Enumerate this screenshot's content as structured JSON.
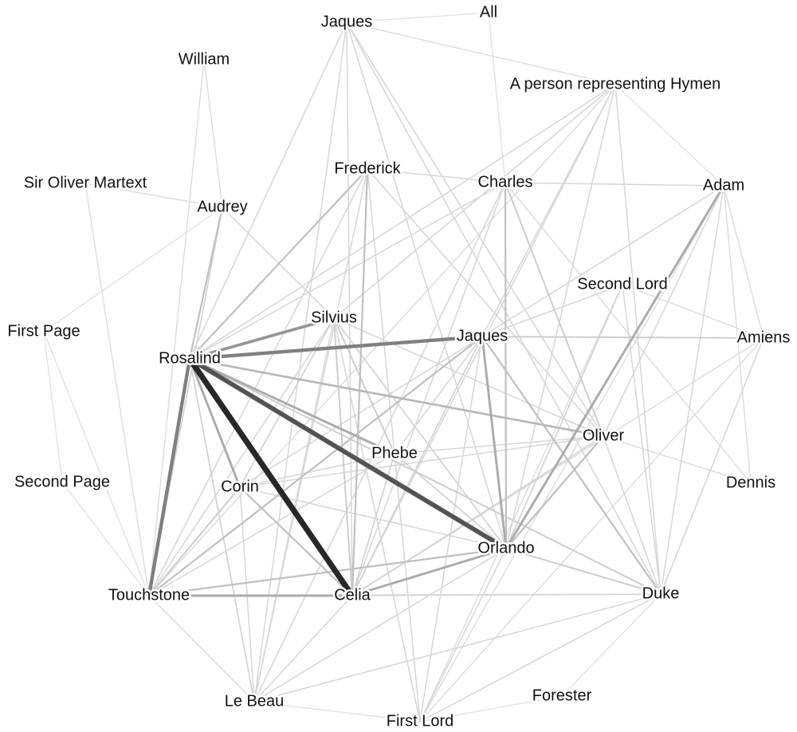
{
  "nodes": [
    {
      "id": "jaques_top",
      "label": "Jaques"
    },
    {
      "id": "all",
      "label": "All"
    },
    {
      "id": "william",
      "label": "William"
    },
    {
      "id": "hymen",
      "label": "A person representing Hymen"
    },
    {
      "id": "frederick",
      "label": "Frederick"
    },
    {
      "id": "charles",
      "label": "Charles"
    },
    {
      "id": "adam",
      "label": "Adam"
    },
    {
      "id": "sir_oliver",
      "label": "Sir Oliver Martext"
    },
    {
      "id": "audrey",
      "label": "Audrey"
    },
    {
      "id": "second_lord",
      "label": "Second Lord"
    },
    {
      "id": "silvius",
      "label": "Silvius"
    },
    {
      "id": "first_page",
      "label": "First Page"
    },
    {
      "id": "jaques",
      "label": "Jaques"
    },
    {
      "id": "amiens",
      "label": "Amiens"
    },
    {
      "id": "rosalind",
      "label": "Rosalind"
    },
    {
      "id": "oliver",
      "label": "Oliver"
    },
    {
      "id": "phebe",
      "label": "Phebe"
    },
    {
      "id": "second_page",
      "label": "Second Page"
    },
    {
      "id": "dennis",
      "label": "Dennis"
    },
    {
      "id": "corin",
      "label": "Corin"
    },
    {
      "id": "orlando",
      "label": "Orlando"
    },
    {
      "id": "touchstone",
      "label": "Touchstone"
    },
    {
      "id": "celia",
      "label": "Celia"
    },
    {
      "id": "duke",
      "label": "Duke"
    },
    {
      "id": "forester",
      "label": "Forester"
    },
    {
      "id": "le_beau",
      "label": "Le Beau"
    },
    {
      "id": "first_lord",
      "label": "First Lord"
    }
  ],
  "edges": [
    {
      "source": "rosalind",
      "target": "celia",
      "weight": 9
    },
    {
      "source": "rosalind",
      "target": "orlando",
      "weight": 7
    },
    {
      "source": "rosalind",
      "target": "touchstone",
      "weight": 5
    },
    {
      "source": "rosalind",
      "target": "jaques",
      "weight": 5
    },
    {
      "source": "rosalind",
      "target": "silvius",
      "weight": 4
    },
    {
      "source": "rosalind",
      "target": "phebe",
      "weight": 3
    },
    {
      "source": "rosalind",
      "target": "corin",
      "weight": 3
    },
    {
      "source": "rosalind",
      "target": "oliver",
      "weight": 2.5
    },
    {
      "source": "rosalind",
      "target": "frederick",
      "weight": 2
    },
    {
      "source": "rosalind",
      "target": "audrey",
      "weight": 2
    },
    {
      "source": "rosalind",
      "target": "jaques_top",
      "weight": 1
    },
    {
      "source": "rosalind",
      "target": "charles",
      "weight": 1
    },
    {
      "source": "rosalind",
      "target": "le_beau",
      "weight": 1.2
    },
    {
      "source": "rosalind",
      "target": "duke",
      "weight": 1.5
    },
    {
      "source": "rosalind",
      "target": "hymen",
      "weight": 1
    },
    {
      "source": "orlando",
      "target": "jaques",
      "weight": 3
    },
    {
      "source": "orlando",
      "target": "adam",
      "weight": 3
    },
    {
      "source": "orlando",
      "target": "celia",
      "weight": 3
    },
    {
      "source": "orlando",
      "target": "oliver",
      "weight": 2
    },
    {
      "source": "orlando",
      "target": "charles",
      "weight": 2
    },
    {
      "source": "orlando",
      "target": "touchstone",
      "weight": 2
    },
    {
      "source": "orlando",
      "target": "duke",
      "weight": 1.5
    },
    {
      "source": "orlando",
      "target": "second_lord",
      "weight": 1.2
    },
    {
      "source": "orlando",
      "target": "jaques_top",
      "weight": 1
    },
    {
      "source": "orlando",
      "target": "phebe",
      "weight": 1.2
    },
    {
      "source": "orlando",
      "target": "silvius",
      "weight": 1.2
    },
    {
      "source": "orlando",
      "target": "corin",
      "weight": 1
    },
    {
      "source": "orlando",
      "target": "first_lord",
      "weight": 1
    },
    {
      "source": "orlando",
      "target": "le_beau",
      "weight": 1
    },
    {
      "source": "orlando",
      "target": "hymen",
      "weight": 1
    },
    {
      "source": "celia",
      "target": "touchstone",
      "weight": 3
    },
    {
      "source": "celia",
      "target": "frederick",
      "weight": 2
    },
    {
      "source": "celia",
      "target": "corin",
      "weight": 2
    },
    {
      "source": "celia",
      "target": "silvius",
      "weight": 1.5
    },
    {
      "source": "celia",
      "target": "phebe",
      "weight": 1.2
    },
    {
      "source": "celia",
      "target": "jaques",
      "weight": 1.2
    },
    {
      "source": "celia",
      "target": "oliver",
      "weight": 1.2
    },
    {
      "source": "celia",
      "target": "charles",
      "weight": 1
    },
    {
      "source": "celia",
      "target": "le_beau",
      "weight": 1
    },
    {
      "source": "celia",
      "target": "duke",
      "weight": 1
    },
    {
      "source": "touchstone",
      "target": "jaques",
      "weight": 2
    },
    {
      "source": "touchstone",
      "target": "corin",
      "weight": 1.5
    },
    {
      "source": "touchstone",
      "target": "audrey",
      "weight": 1.2
    },
    {
      "source": "touchstone",
      "target": "silvius",
      "weight": 1
    },
    {
      "source": "touchstone",
      "target": "william",
      "weight": 0.8
    },
    {
      "source": "touchstone",
      "target": "sir_oliver",
      "weight": 0.8
    },
    {
      "source": "touchstone",
      "target": "first_page",
      "weight": 0.6
    },
    {
      "source": "touchstone",
      "target": "second_page",
      "weight": 0.6
    },
    {
      "source": "touchstone",
      "target": "le_beau",
      "weight": 0.8
    },
    {
      "source": "touchstone",
      "target": "frederick",
      "weight": 1
    },
    {
      "source": "touchstone",
      "target": "phebe",
      "weight": 1
    },
    {
      "source": "touchstone",
      "target": "duke",
      "weight": 1
    },
    {
      "source": "touchstone",
      "target": "hymen",
      "weight": 0.8
    },
    {
      "source": "jaques",
      "target": "duke",
      "weight": 2
    },
    {
      "source": "jaques",
      "target": "amiens",
      "weight": 1.5
    },
    {
      "source": "jaques",
      "target": "second_lord",
      "weight": 1
    },
    {
      "source": "jaques",
      "target": "adam",
      "weight": 1
    },
    {
      "source": "jaques",
      "target": "first_lord",
      "weight": 1
    },
    {
      "source": "jaques",
      "target": "phebe",
      "weight": 1
    },
    {
      "source": "jaques",
      "target": "corin",
      "weight": 1
    },
    {
      "source": "jaques",
      "target": "hymen",
      "weight": 1
    },
    {
      "source": "frederick",
      "target": "charles",
      "weight": 1
    },
    {
      "source": "frederick",
      "target": "oliver",
      "weight": 1
    },
    {
      "source": "frederick",
      "target": "le_beau",
      "weight": 1
    },
    {
      "source": "frederick",
      "target": "first_lord",
      "weight": 1
    },
    {
      "source": "charles",
      "target": "oliver",
      "weight": 1.5
    },
    {
      "source": "charles",
      "target": "adam",
      "weight": 1
    },
    {
      "source": "charles",
      "target": "dennis",
      "weight": 0.8
    },
    {
      "source": "charles",
      "target": "le_beau",
      "weight": 1
    },
    {
      "source": "charles",
      "target": "all",
      "weight": 0.6
    },
    {
      "source": "adam",
      "target": "duke",
      "weight": 1
    },
    {
      "source": "adam",
      "target": "oliver",
      "weight": 1
    },
    {
      "source": "adam",
      "target": "dennis",
      "weight": 0.8
    },
    {
      "source": "adam",
      "target": "first_lord",
      "weight": 0.8
    },
    {
      "source": "duke",
      "target": "amiens",
      "weight": 1
    },
    {
      "source": "duke",
      "target": "first_lord",
      "weight": 1
    },
    {
      "source": "duke",
      "target": "second_lord",
      "weight": 1
    },
    {
      "source": "duke",
      "target": "le_beau",
      "weight": 1
    },
    {
      "source": "duke",
      "target": "hymen",
      "weight": 1
    },
    {
      "source": "duke",
      "target": "oliver",
      "weight": 1
    },
    {
      "source": "duke",
      "target": "jaques_top",
      "weight": 1
    },
    {
      "source": "duke",
      "target": "celia",
      "weight": 1
    },
    {
      "source": "oliver",
      "target": "dennis",
      "weight": 0.8
    },
    {
      "source": "oliver",
      "target": "phebe",
      "weight": 1
    },
    {
      "source": "oliver",
      "target": "silvius",
      "weight": 1
    },
    {
      "source": "oliver",
      "target": "corin",
      "weight": 1
    },
    {
      "source": "silvius",
      "target": "phebe",
      "weight": 1.5
    },
    {
      "source": "silvius",
      "target": "corin",
      "weight": 1.2
    },
    {
      "source": "silvius",
      "target": "le_beau",
      "weight": 1
    },
    {
      "source": "silvius",
      "target": "first_lord",
      "weight": 1
    },
    {
      "source": "silvius",
      "target": "hymen",
      "weight": 1
    },
    {
      "source": "silvius",
      "target": "audrey",
      "weight": 1
    },
    {
      "source": "phebe",
      "target": "corin",
      "weight": 1
    },
    {
      "source": "phebe",
      "target": "orlando",
      "weight": 1
    },
    {
      "source": "corin",
      "target": "le_beau",
      "weight": 1
    },
    {
      "source": "audrey",
      "target": "william",
      "weight": 0.8
    },
    {
      "source": "audrey",
      "target": "sir_oliver",
      "weight": 0.8
    },
    {
      "source": "audrey",
      "target": "first_page",
      "weight": 0.6
    },
    {
      "source": "first_page",
      "target": "second_page",
      "weight": 0.6
    },
    {
      "source": "jaques_top",
      "target": "all",
      "weight": 0.6
    },
    {
      "source": "jaques_top",
      "target": "oliver",
      "weight": 1
    },
    {
      "source": "jaques_top",
      "target": "celia",
      "weight": 1
    },
    {
      "source": "jaques_top",
      "target": "le_beau",
      "weight": 1
    },
    {
      "source": "jaques_top",
      "target": "hymen",
      "weight": 0.8
    },
    {
      "source": "hymen",
      "target": "celia",
      "weight": 1
    },
    {
      "source": "hymen",
      "target": "adam",
      "weight": 0.6
    },
    {
      "source": "amiens",
      "target": "first_lord",
      "weight": 0.8
    },
    {
      "source": "amiens",
      "target": "adam",
      "weight": 0.8
    },
    {
      "source": "amiens",
      "target": "second_lord",
      "weight": 0.8
    },
    {
      "source": "amiens",
      "target": "celia",
      "weight": 0.8
    },
    {
      "source": "first_lord",
      "target": "second_lord",
      "weight": 0.8
    },
    {
      "source": "first_lord",
      "target": "forester",
      "weight": 0.6
    },
    {
      "source": "forester",
      "target": "duke",
      "weight": 0.6
    },
    {
      "source": "le_beau",
      "target": "first_lord",
      "weight": 0.6
    }
  ]
}
